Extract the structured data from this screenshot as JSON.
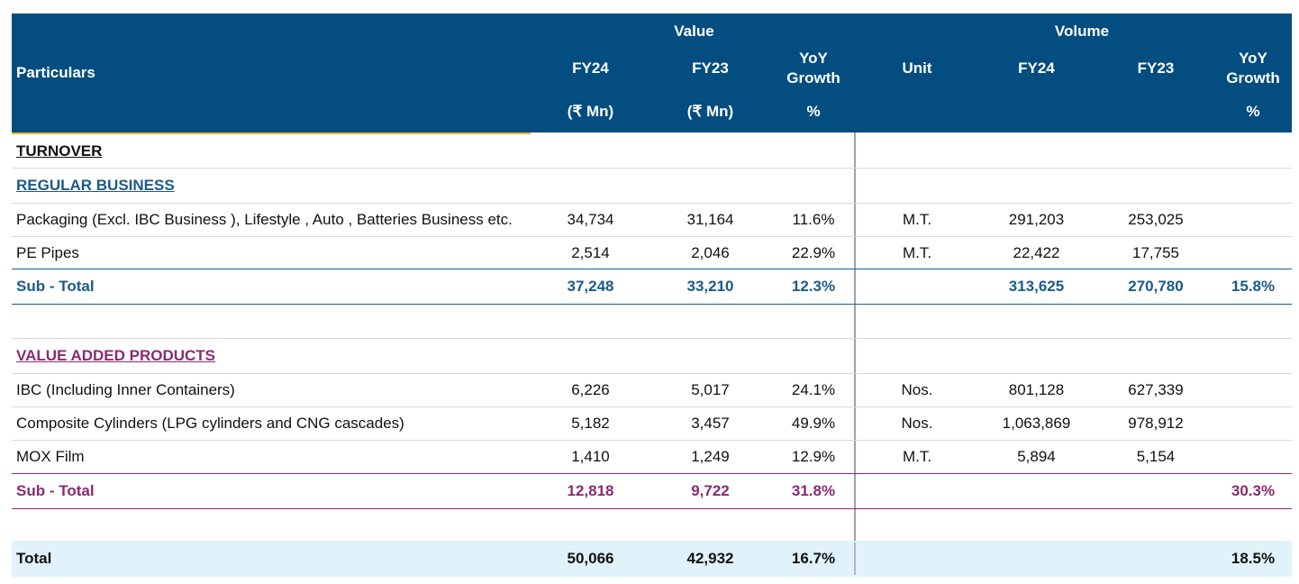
{
  "header": {
    "particulars": "Particulars",
    "value_group": "Value",
    "volume_group": "Volume",
    "fy24": "FY24",
    "fy23": "FY23",
    "yoy_growth_line1": "YoY",
    "yoy_growth_line2": "Growth",
    "unit": "Unit",
    "rs_mn": "(₹ Mn)",
    "percent": "%"
  },
  "turnover_label": "TURNOVER",
  "regular": {
    "title": "REGULAR BUSINESS",
    "rows": [
      {
        "name": "Packaging  (Excl. IBC Business ), Lifestyle , Auto , Batteries Business  etc.",
        "fy24": "34,734",
        "fy23": "31,164",
        "yoy": "11.6%",
        "unit": "M.T.",
        "vfy24": "291,203",
        "vfy23": "253,025",
        "vyoy": ""
      },
      {
        "name": "PE Pipes",
        "fy24": "2,514",
        "fy23": "2,046",
        "yoy": "22.9%",
        "unit": "M.T.",
        "vfy24": "22,422",
        "vfy23": "17,755",
        "vyoy": ""
      }
    ],
    "subtotal": {
      "name": "Sub - Total",
      "fy24": "37,248",
      "fy23": "33,210",
      "yoy": "12.3%",
      "unit": "",
      "vfy24": "313,625",
      "vfy23": "270,780",
      "vyoy": "15.8%"
    }
  },
  "vap": {
    "title": "VALUE ADDED PRODUCTS",
    "rows": [
      {
        "name": "IBC (Including Inner Containers)",
        "fy24": "6,226",
        "fy23": "5,017",
        "yoy": "24.1%",
        "unit": "Nos.",
        "vfy24": "801,128",
        "vfy23": "627,339",
        "vyoy": ""
      },
      {
        "name": "Composite Cylinders (LPG cylinders and CNG cascades)",
        "fy24": "5,182",
        "fy23": "3,457",
        "yoy": "49.9%",
        "unit": "Nos.",
        "vfy24": "1,063,869",
        "vfy23": "978,912",
        "vyoy": ""
      },
      {
        "name": "MOX Film",
        "fy24": "1,410",
        "fy23": "1,249",
        "yoy": "12.9%",
        "unit": "M.T.",
        "vfy24": "5,894",
        "vfy23": "5,154",
        "vyoy": ""
      }
    ],
    "subtotal": {
      "name": "Sub - Total",
      "fy24": "12,818",
      "fy23": "9,722",
      "yoy": "31.8%",
      "unit": "",
      "vfy24": "",
      "vfy23": "",
      "vyoy": "30.3%"
    }
  },
  "total": {
    "name": "Total",
    "fy24": "50,066",
    "fy23": "42,932",
    "yoy": "16.7%",
    "unit": "",
    "vfy24": "",
    "vfy23": "",
    "vyoy": "18.5%"
  },
  "colors": {
    "header_bg": "#034d80",
    "regular_accent": "#1c5a8a",
    "vap_accent": "#8a2a73",
    "total_bg": "#e1f2fb"
  }
}
